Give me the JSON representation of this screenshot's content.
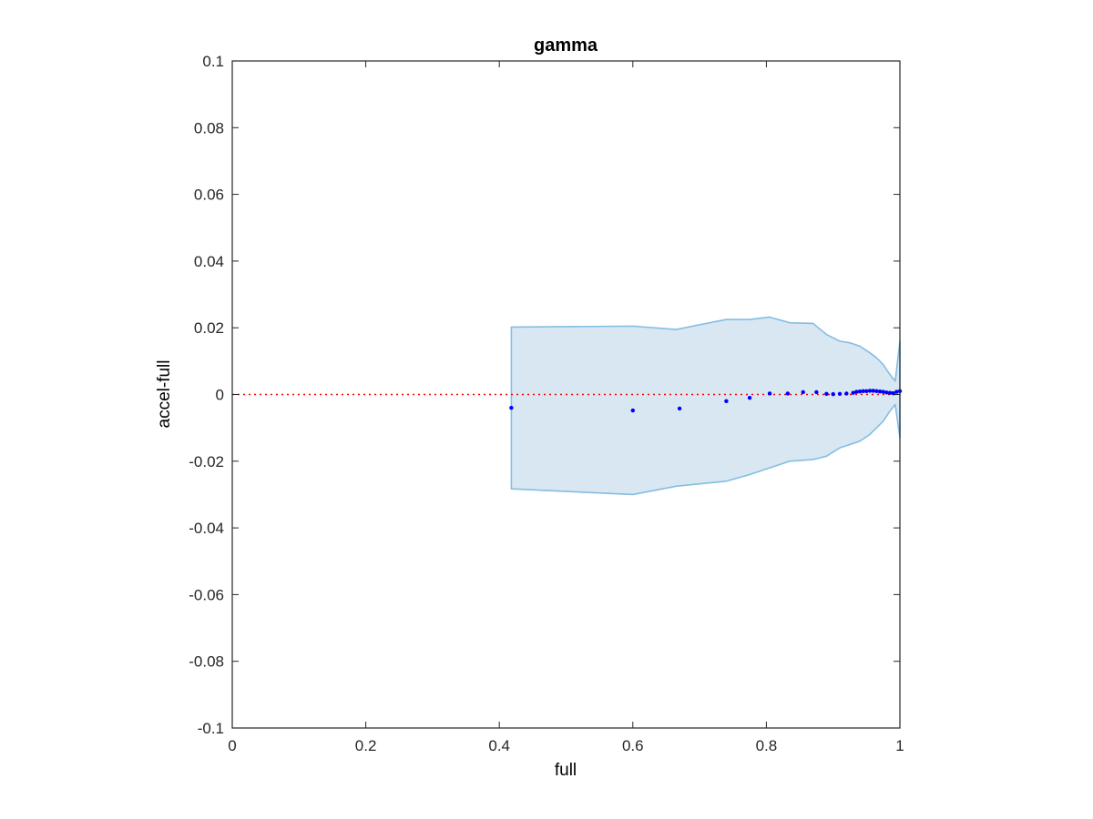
{
  "chart_data": {
    "type": "scatter",
    "title": "gamma",
    "xlabel": "full",
    "ylabel": "accel-full",
    "xlim": [
      0,
      1
    ],
    "ylim": [
      -0.1,
      0.1
    ],
    "xticks": [
      0,
      0.2,
      0.4,
      0.6,
      0.8,
      1
    ],
    "xtick_labels": [
      "0",
      "0.2",
      "0.4",
      "0.6",
      "0.8",
      "1"
    ],
    "yticks": [
      -0.1,
      -0.08,
      -0.06,
      -0.04,
      -0.02,
      0,
      0.02,
      0.04,
      0.06,
      0.08,
      0.1
    ],
    "ytick_labels": [
      "-0.1",
      "-0.08",
      "-0.06",
      "-0.04",
      "-0.02",
      "0",
      "0.02",
      "0.04",
      "0.06",
      "0.08",
      "0.1"
    ],
    "grid": false,
    "reference_line": {
      "y": 0,
      "style": "dotted",
      "color": "#ff0000"
    },
    "band": {
      "fill_color": "#d9e7f3",
      "edge_color": "#84bde3",
      "x": [
        0.418,
        0.6,
        0.665,
        0.74,
        0.775,
        0.805,
        0.835,
        0.87,
        0.89,
        0.91,
        0.925,
        0.94,
        0.955,
        0.965,
        0.975,
        0.985,
        0.993,
        1.0
      ],
      "upper": [
        0.0202,
        0.0205,
        0.0195,
        0.0225,
        0.0225,
        0.0232,
        0.0215,
        0.0213,
        0.018,
        0.016,
        0.0155,
        0.0145,
        0.0125,
        0.011,
        0.009,
        0.006,
        0.004,
        0.016
      ],
      "lower": [
        -0.0283,
        -0.03,
        -0.0275,
        -0.026,
        -0.024,
        -0.022,
        -0.02,
        -0.0195,
        -0.0185,
        -0.016,
        -0.015,
        -0.014,
        -0.012,
        -0.01,
        -0.008,
        -0.005,
        -0.003,
        -0.013
      ]
    },
    "series": [
      {
        "color": "#0000ff",
        "x": [
          0.418,
          0.6,
          0.67,
          0.74,
          0.775,
          0.805,
          0.832,
          0.855,
          0.875,
          0.89,
          0.9,
          0.91,
          0.92,
          0.93,
          0.935,
          0.94,
          0.945,
          0.95,
          0.955,
          0.96,
          0.965,
          0.97,
          0.975,
          0.98,
          0.985,
          0.99,
          0.995,
          1.0
        ],
        "y": [
          -0.004,
          -0.0048,
          -0.0042,
          -0.002,
          -0.001,
          0.0003,
          0.0003,
          0.0007,
          0.0007,
          0.0002,
          0.0001,
          0.0002,
          0.0003,
          0.0005,
          0.0008,
          0.0009,
          0.001,
          0.001,
          0.0011,
          0.0011,
          0.001,
          0.0009,
          0.0008,
          0.0006,
          0.0005,
          0.0004,
          0.0008,
          0.001
        ]
      }
    ]
  }
}
